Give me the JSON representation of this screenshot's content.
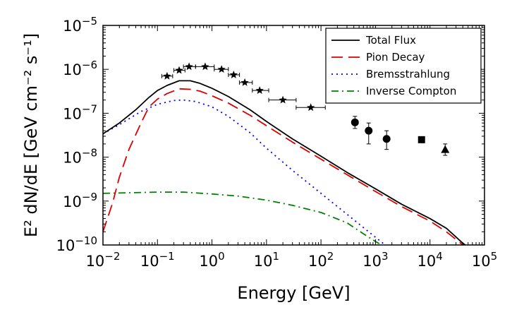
{
  "chart_data": {
    "type": "line",
    "title": "",
    "xlabel": "Energy [GeV]",
    "ylabel": "E² dN/dE [GeV cm⁻² s⁻¹]",
    "xscale": "log",
    "yscale": "log",
    "xlim": [
      0.01,
      100000
    ],
    "ylim": [
      1e-10,
      1e-05
    ],
    "grid": false,
    "legend_position": "top-right",
    "x_ticks": [
      {
        "value": 0.01,
        "base": "10",
        "exp": "−2"
      },
      {
        "value": 0.1,
        "base": "10",
        "exp": "−1"
      },
      {
        "value": 1,
        "base": "10",
        "exp": "0"
      },
      {
        "value": 10,
        "base": "10",
        "exp": "1"
      },
      {
        "value": 100,
        "base": "10",
        "exp": "2"
      },
      {
        "value": 1000,
        "base": "10",
        "exp": "3"
      },
      {
        "value": 10000,
        "base": "10",
        "exp": "4"
      },
      {
        "value": 100000,
        "base": "10",
        "exp": "5"
      }
    ],
    "y_ticks": [
      {
        "value": 1e-10,
        "base": "10",
        "exp": "−10"
      },
      {
        "value": 1e-09,
        "base": "10",
        "exp": "−9"
      },
      {
        "value": 1e-08,
        "base": "10",
        "exp": "−8"
      },
      {
        "value": 1e-07,
        "base": "10",
        "exp": "−7"
      },
      {
        "value": 1e-06,
        "base": "10",
        "exp": "−6"
      },
      {
        "value": 1e-05,
        "base": "10",
        "exp": "−5"
      }
    ],
    "series": [
      {
        "name": "Total Flux",
        "color": "#000000",
        "dash": "",
        "points": [
          [
            0.01,
            3.4e-08
          ],
          [
            0.02,
            6e-08
          ],
          [
            0.04,
            1.2e-07
          ],
          [
            0.07,
            2.3e-07
          ],
          [
            0.1,
            3.3e-07
          ],
          [
            0.15,
            4.3e-07
          ],
          [
            0.25,
            5.5e-07
          ],
          [
            0.4,
            5.5e-07
          ],
          [
            0.6,
            4.8e-07
          ],
          [
            1,
            3.7e-07
          ],
          [
            2,
            2.4e-07
          ],
          [
            5,
            1.2e-07
          ],
          [
            10,
            6.5e-08
          ],
          [
            30,
            2.6e-08
          ],
          [
            100,
            1.05e-08
          ],
          [
            300,
            4.5e-09
          ],
          [
            1000,
            1.9e-09
          ],
          [
            3000,
            8.5e-10
          ],
          [
            10000,
            4e-10
          ],
          [
            20000,
            2.4e-10
          ],
          [
            40000,
            1.1e-10
          ],
          [
            50000,
            9e-11
          ]
        ]
      },
      {
        "name": "Pion Decay",
        "color": "#dd0000",
        "dash": "16,8",
        "points": [
          [
            0.01,
            2e-10
          ],
          [
            0.015,
            9e-10
          ],
          [
            0.02,
            3.5e-09
          ],
          [
            0.03,
            1.5e-08
          ],
          [
            0.05,
            6e-08
          ],
          [
            0.07,
            1.4e-07
          ],
          [
            0.1,
            2.1e-07
          ],
          [
            0.15,
            2.8e-07
          ],
          [
            0.25,
            3.6e-07
          ],
          [
            0.4,
            3.5e-07
          ],
          [
            0.6,
            3.2e-07
          ],
          [
            1,
            2.5e-07
          ],
          [
            2,
            1.7e-07
          ],
          [
            5,
            9e-08
          ],
          [
            10,
            5.2e-08
          ],
          [
            30,
            2.2e-08
          ],
          [
            100,
            9e-09
          ],
          [
            300,
            4e-09
          ],
          [
            1000,
            1.65e-09
          ],
          [
            3000,
            7.5e-10
          ],
          [
            10000,
            3.5e-10
          ],
          [
            20000,
            2e-10
          ],
          [
            40000,
            1e-10
          ]
        ]
      },
      {
        "name": "Bremsstrahlung",
        "color": "#0000ee",
        "dash": "2,5",
        "points": [
          [
            0.01,
            3.4e-08
          ],
          [
            0.02,
            5.5e-08
          ],
          [
            0.05,
            1.1e-07
          ],
          [
            0.1,
            1.6e-07
          ],
          [
            0.2,
            1.95e-07
          ],
          [
            0.3,
            2e-07
          ],
          [
            0.5,
            1.85e-07
          ],
          [
            1,
            1.4e-07
          ],
          [
            2,
            8.5e-08
          ],
          [
            5,
            3.6e-08
          ],
          [
            10,
            1.6e-08
          ],
          [
            30,
            5e-09
          ],
          [
            100,
            1.5e-09
          ],
          [
            300,
            5e-10
          ],
          [
            1000,
            1.5e-10
          ],
          [
            1500,
            1e-10
          ]
        ]
      },
      {
        "name": "Inverse Compton",
        "color": "#008000",
        "dash": "10,5,2,5",
        "points": [
          [
            0.01,
            1.5e-09
          ],
          [
            0.1,
            1.6e-09
          ],
          [
            0.3,
            1.6e-09
          ],
          [
            1,
            1.45e-09
          ],
          [
            3,
            1.3e-09
          ],
          [
            10,
            1.05e-09
          ],
          [
            30,
            8e-10
          ],
          [
            100,
            5.5e-10
          ],
          [
            300,
            3.2e-10
          ],
          [
            600,
            1.8e-10
          ],
          [
            1000,
            1.2e-10
          ],
          [
            1300,
            1e-10
          ]
        ]
      }
    ],
    "data_points": {
      "stars": [
        {
          "x": 0.15,
          "y": 7e-07,
          "xerr": [
            0.12,
            0.19
          ]
        },
        {
          "x": 0.25,
          "y": 9.5e-07,
          "xerr": [
            0.2,
            0.32
          ]
        },
        {
          "x": 0.38,
          "y": 1.15e-06,
          "xerr": [
            0.3,
            0.5
          ]
        },
        {
          "x": 0.75,
          "y": 1.15e-06,
          "xerr": [
            0.5,
            1.1
          ]
        },
        {
          "x": 1.5,
          "y": 1e-06,
          "xerr": [
            1.1,
            2.0
          ]
        },
        {
          "x": 2.5,
          "y": 7.5e-07,
          "xerr": [
            2.0,
            3.2
          ]
        },
        {
          "x": 4.0,
          "y": 5e-07,
          "xerr": [
            3.2,
            5.5
          ]
        },
        {
          "x": 7.5,
          "y": 3.3e-07,
          "xerr": [
            5.5,
            11
          ]
        },
        {
          "x": 20,
          "y": 2e-07,
          "xerr": [
            11,
            35
          ]
        },
        {
          "x": 65,
          "y": 1.35e-07,
          "xerr": [
            35,
            120
          ]
        }
      ],
      "circles": [
        {
          "x": 420,
          "y": 6.2e-08,
          "yerr": [
            4.5e-08,
            8.5e-08
          ]
        },
        {
          "x": 750,
          "y": 4e-08,
          "yerr": [
            2e-08,
            6e-08
          ]
        },
        {
          "x": 1600,
          "y": 2.6e-08,
          "yerr": [
            1.5e-08,
            4e-08
          ]
        }
      ],
      "squares": [
        {
          "x": 7000,
          "y": 2.5e-08
        }
      ],
      "triangles": [
        {
          "x": 19000,
          "y": 1.5e-08,
          "yerr": [
            1.1e-08,
            2e-08
          ]
        }
      ]
    }
  }
}
